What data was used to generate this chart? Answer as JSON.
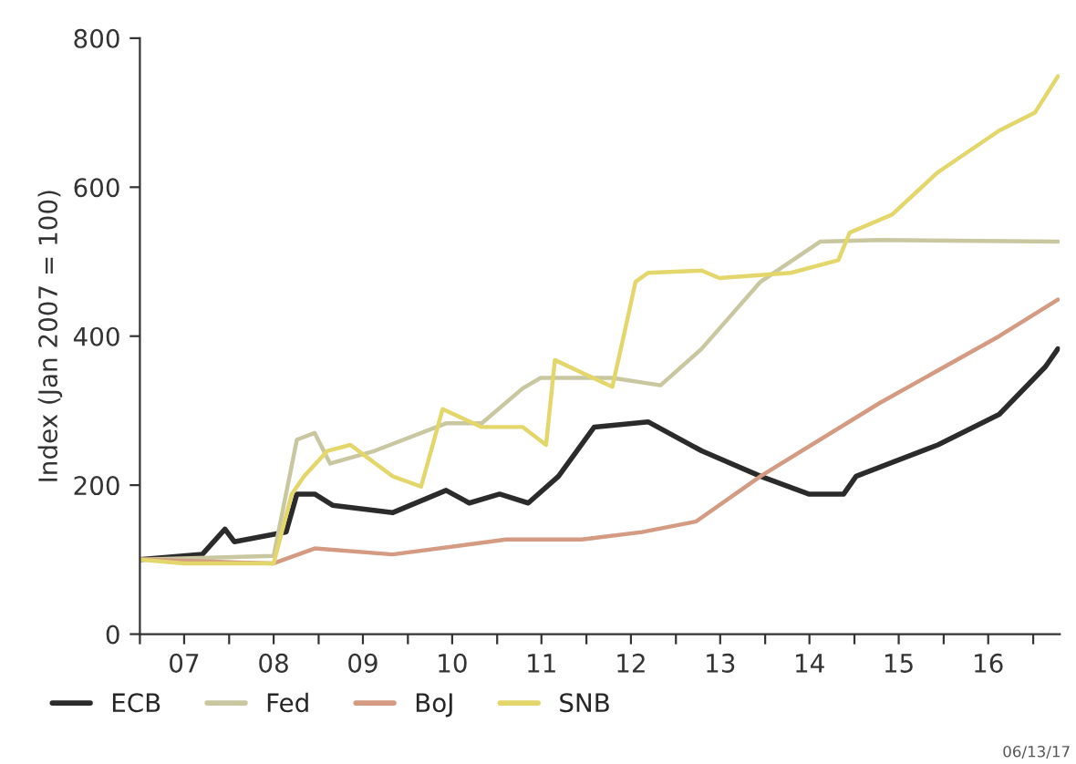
{
  "chart_data": {
    "type": "line",
    "ylabel": "Index (Jan 2007 = 100)",
    "xlim": [
      "2007-01-01",
      "2017-04-20"
    ],
    "ylim": [
      0,
      800
    ],
    "yticks": [
      0,
      200,
      400,
      600,
      800
    ],
    "xticks": [
      {
        "value": "2007-01-01",
        "label": null
      },
      {
        "value": "2007-07-01",
        "label": "07"
      },
      {
        "value": "2008-01-01",
        "label": null
      },
      {
        "value": "2008-07-01",
        "label": "08"
      },
      {
        "value": "2009-01-01",
        "label": null
      },
      {
        "value": "2009-07-01",
        "label": "09"
      },
      {
        "value": "2010-01-01",
        "label": null
      },
      {
        "value": "2010-07-01",
        "label": "10"
      },
      {
        "value": "2011-01-01",
        "label": null
      },
      {
        "value": "2011-07-01",
        "label": "11"
      },
      {
        "value": "2012-01-01",
        "label": null
      },
      {
        "value": "2012-07-01",
        "label": "12"
      },
      {
        "value": "2013-01-01",
        "label": null
      },
      {
        "value": "2013-07-01",
        "label": "13"
      },
      {
        "value": "2014-01-01",
        "label": null
      },
      {
        "value": "2014-07-01",
        "label": "14"
      },
      {
        "value": "2015-01-01",
        "label": null
      },
      {
        "value": "2015-07-01",
        "label": "15"
      },
      {
        "value": "2016-01-01",
        "label": null
      },
      {
        "value": "2016-07-01",
        "label": "16"
      },
      {
        "value": "2017-01-01",
        "label": null
      }
    ],
    "grid": false,
    "legend": "bottom",
    "annotations": [
      "06/13/17"
    ],
    "series": [
      {
        "name": "ECB",
        "color": "#2b2b2b",
        "x": [
          "2007-01-01",
          "2007-09-13",
          "2007-12-15",
          "2008-01-22",
          "2008-08-21",
          "2008-10-04",
          "2008-12-16",
          "2009-02-27",
          "2009-10-30",
          "2010-06-06",
          "2010-09-09",
          "2011-01-11",
          "2011-05-08",
          "2011-09-09",
          "2012-02-02",
          "2012-09-09",
          "2013-04-16",
          "2013-12-13",
          "2014-06-28",
          "2014-11-18",
          "2015-01-08",
          "2015-12-08",
          "2016-08-15",
          "2017-02-20",
          "2017-04-12"
        ],
        "values": [
          100,
          107,
          141,
          124,
          137,
          188,
          188,
          173,
          163,
          193,
          176,
          188,
          176,
          212,
          278,
          285,
          246,
          212,
          188,
          188,
          212,
          254,
          295,
          359,
          383
        ]
      },
      {
        "name": "Fed",
        "color": "#c9c7a0",
        "x": [
          "2007-01-01",
          "2008-07-01",
          "2008-10-04",
          "2008-12-16",
          "2009-02-17",
          "2009-08-18",
          "2010-06-06",
          "2010-10-30",
          "2011-04-16",
          "2011-06-28",
          "2012-04-16",
          "2012-10-30",
          "2013-04-16",
          "2013-12-13",
          "2014-08-15",
          "2015-04-13",
          "2017-04-12"
        ],
        "values": [
          100,
          105,
          261,
          270,
          229,
          246,
          283,
          283,
          330,
          344,
          344,
          334,
          383,
          473,
          527,
          529,
          527
        ]
      },
      {
        "name": "BoJ",
        "color": "#d49a82",
        "x": [
          "2007-01-01",
          "2008-07-01",
          "2008-12-16",
          "2009-10-30",
          "2011-02-06",
          "2011-12-13",
          "2012-08-15",
          "2013-03-23",
          "2013-12-13",
          "2015-04-13",
          "2016-08-15",
          "2017-04-12"
        ],
        "values": [
          100,
          95,
          115,
          107,
          127,
          127,
          137,
          151,
          212,
          310,
          400,
          449
        ]
      },
      {
        "name": "SNB",
        "color": "#e3d66a",
        "x": [
          "2007-01-01",
          "2007-07-01",
          "2008-07-01",
          "2008-09-13",
          "2008-11-03",
          "2009-02-06",
          "2009-05-11",
          "2009-10-30",
          "2010-02-24",
          "2010-05-23",
          "2010-10-30",
          "2011-04-16",
          "2011-07-20",
          "2011-08-25",
          "2011-12-13",
          "2012-04-16",
          "2012-06-06",
          "2012-07-20",
          "2012-09-09",
          "2013-04-16",
          "2013-06-28",
          "2014-04-16",
          "2014-10-27",
          "2014-12-13",
          "2015-06-03",
          "2015-12-08",
          "2016-08-15",
          "2017-01-08",
          "2017-04-12"
        ],
        "values": [
          100,
          95,
          95,
          188,
          212,
          246,
          254,
          212,
          198,
          302,
          278,
          278,
          254,
          368,
          351,
          332,
          407,
          473,
          485,
          488,
          478,
          485,
          502,
          539,
          563,
          620,
          676,
          700,
          749
        ]
      }
    ]
  }
}
